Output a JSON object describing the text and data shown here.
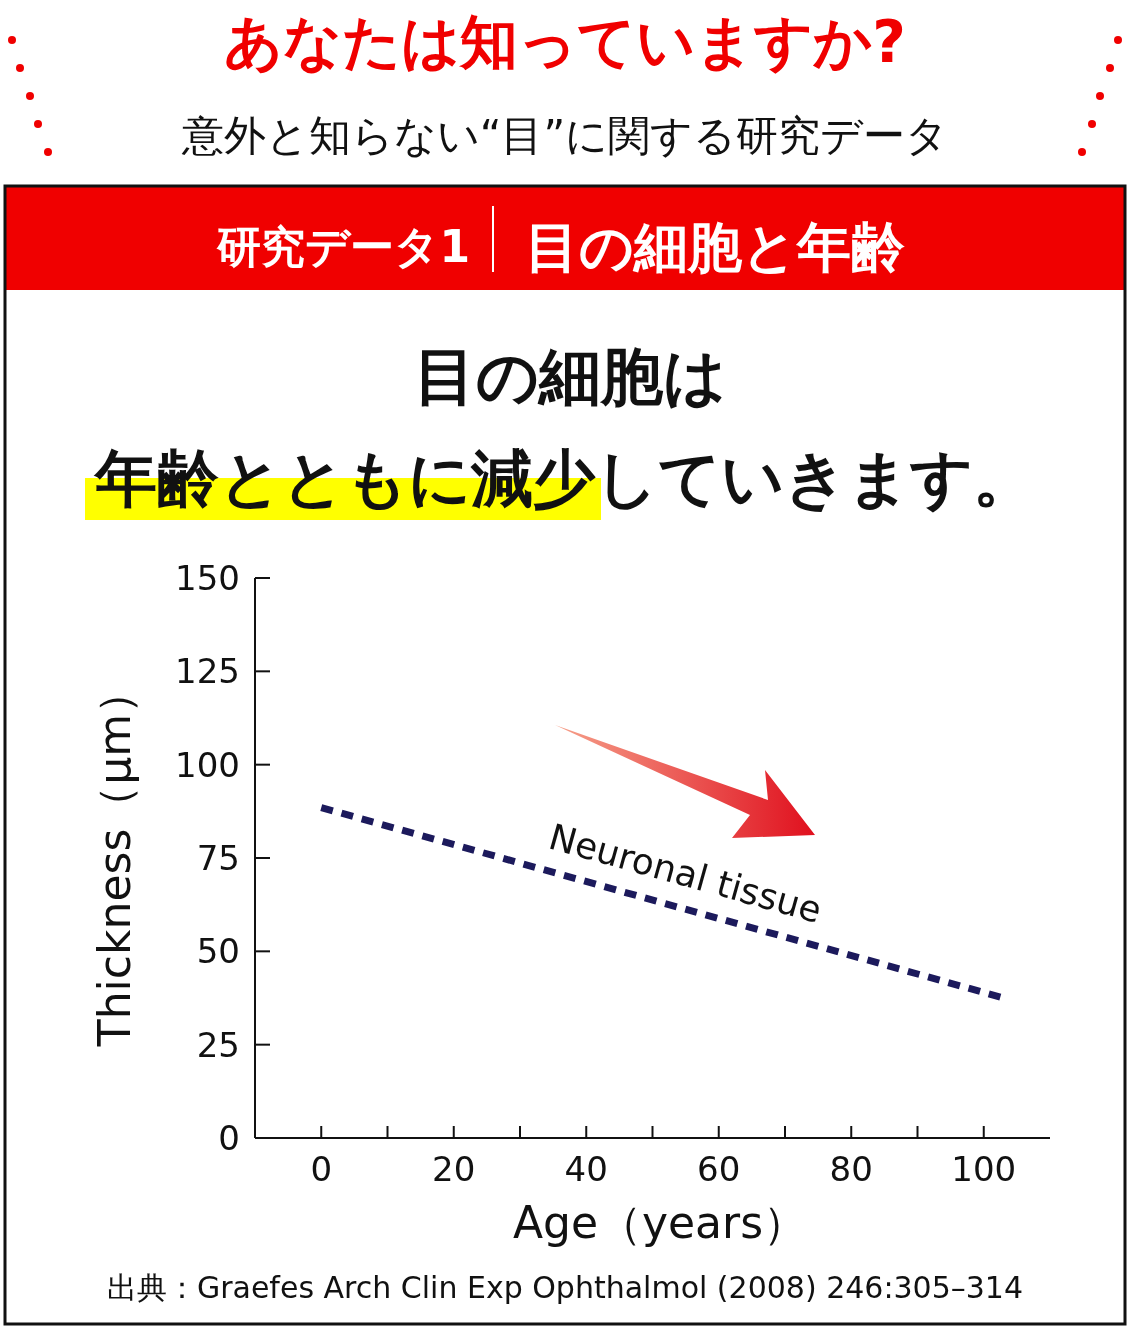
{
  "chart_data": {
    "type": "line",
    "title": "あなたは知っていますか?",
    "subtitle": "意外と知らない“目”に関する研究データ",
    "annotations": [
      "研究データ1",
      "目の細胞と年齢",
      "目の細胞は",
      "年齢とともに減少していきます。",
      "出典：Graefes Arch Clin Exp Ophthalmol (2008) 246:305–314"
    ],
    "xlabel": "Age（years）",
    "ylabel": "Thickness（μm）",
    "x": [
      0,
      103
    ],
    "series": [
      {
        "name": "Neuronal tissue",
        "color": "#1c1a5c",
        "values": [
          88.5,
          37.5
        ]
      }
    ],
    "xlim": [
      -10,
      110
    ],
    "ylim": [
      0,
      150
    ],
    "xticks": [
      0,
      {
        "value": 10,
        "label": null
      },
      20,
      {
        "value": 30,
        "label": null
      },
      40,
      {
        "value": 50,
        "label": null
      },
      60,
      {
        "value": 70,
        "label": null
      },
      80,
      {
        "value": 90,
        "label": null
      },
      100
    ],
    "yticks": [
      0,
      25,
      50,
      75,
      100,
      125,
      150
    ],
    "grid": false,
    "legend": false,
    "marker": "none",
    "line_style": "dashed"
  }
}
